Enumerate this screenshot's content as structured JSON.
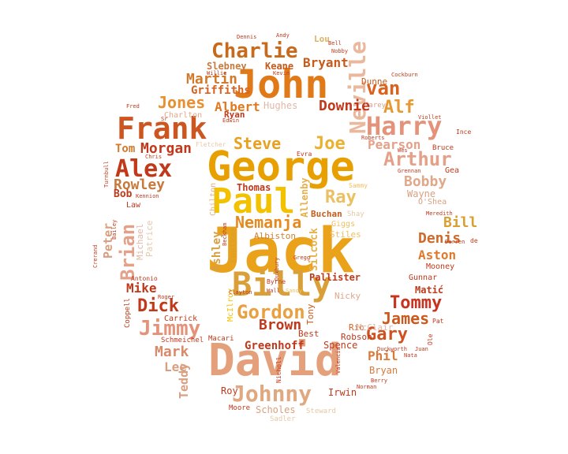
{
  "palette": {
    "dark_red": "#c0391b",
    "red": "#d64520",
    "burnt_orange": "#c85a1a",
    "orange": "#e08020",
    "amber": "#eaa21a",
    "gold": "#f2b600",
    "salmon": "#e4937a",
    "peach": "#e8a878",
    "tan": "#d8b488",
    "light_tan": "#e6c9a8",
    "crimson": "#c91e2a"
  },
  "words": [
    {
      "text": "Jack",
      "color": "#eaa21a"
    },
    {
      "text": "David",
      "color": "#e4a07a"
    },
    {
      "text": "George",
      "color": "#e8a000"
    },
    {
      "text": "John",
      "color": "#e07a18"
    },
    {
      "text": "Paul",
      "color": "#f2c200"
    },
    {
      "text": "Billy",
      "color": "#d9a03a"
    },
    {
      "text": "Frank",
      "color": "#cc5520"
    },
    {
      "text": "Harry",
      "color": "#e4937a"
    },
    {
      "text": "Charlie",
      "color": "#c86a1c"
    },
    {
      "text": "Alex",
      "color": "#c0391b"
    },
    {
      "text": "Neville",
      "color": "#eab89c"
    },
    {
      "text": "Johnny",
      "color": "#e0a880"
    },
    {
      "text": "Gordon",
      "color": "#e8a040"
    },
    {
      "text": "Jimmy",
      "color": "#e4937a"
    },
    {
      "text": "Brian",
      "color": "#e4a088"
    },
    {
      "text": "Arthur",
      "color": "#e4a088"
    },
    {
      "text": "Tommy",
      "color": "#c8321e"
    },
    {
      "text": "Martin",
      "color": "#d27a2a"
    },
    {
      "text": "Jones",
      "color": "#e89030"
    },
    {
      "text": "Steve",
      "color": "#e8a020"
    },
    {
      "text": "Nemanja",
      "color": "#e48a20"
    },
    {
      "text": "Ray",
      "color": "#eac060"
    },
    {
      "text": "Joe",
      "color": "#eab030"
    },
    {
      "text": "van",
      "color": "#d8621e"
    },
    {
      "text": "Alf",
      "color": "#e89830"
    },
    {
      "text": "Gary",
      "color": "#d05020"
    },
    {
      "text": "James",
      "color": "#cc5a1e"
    },
    {
      "text": "Dick",
      "color": "#c0391b"
    },
    {
      "text": "Mark",
      "color": "#d88a6a"
    },
    {
      "text": "Brown",
      "color": "#c0391b"
    },
    {
      "text": "Bobby",
      "color": "#e0a888"
    },
    {
      "text": "Denis",
      "color": "#d06a2a"
    },
    {
      "text": "Aston",
      "color": "#e07a2a"
    },
    {
      "text": "Bill",
      "color": "#d8a030"
    },
    {
      "text": "Rowley",
      "color": "#c67a3e"
    },
    {
      "text": "Morgan",
      "color": "#c0391b"
    },
    {
      "text": "Tom",
      "color": "#d27a2a"
    },
    {
      "text": "Pearson",
      "color": "#e4a088"
    },
    {
      "text": "Downie",
      "color": "#c0391b"
    },
    {
      "text": "Albert",
      "color": "#e07a20"
    },
    {
      "text": "Bryant",
      "color": "#c85a1a"
    },
    {
      "text": "Griffiths",
      "color": "#d8621e"
    },
    {
      "text": "Greenhoff",
      "color": "#c0391b"
    },
    {
      "text": "Mike",
      "color": "#c0391b"
    },
    {
      "text": "Lee",
      "color": "#d8a080"
    },
    {
      "text": "Phil",
      "color": "#d87a3a"
    },
    {
      "text": "Peter",
      "color": "#d8a080"
    },
    {
      "text": "Teddy",
      "color": "#d8a080"
    },
    {
      "text": "Thomas",
      "color": "#c0391b"
    },
    {
      "text": "Ashley",
      "color": "#d8a040"
    },
    {
      "text": "Silcock",
      "color": "#e6b04a"
    },
    {
      "text": "Allenby",
      "color": "#e6b04a"
    },
    {
      "text": "Keane",
      "color": "#c85a1a"
    },
    {
      "text": "Slebney",
      "color": "#c67a3e"
    },
    {
      "text": "Lou",
      "color": "#e0b060"
    },
    {
      "text": "Dunne",
      "color": "#c85a1a"
    },
    {
      "text": "Bob",
      "color": "#c0391b"
    },
    {
      "text": "Ryan",
      "color": "#c0391b"
    },
    {
      "text": "Charlton",
      "color": "#e4a888"
    },
    {
      "text": "Hughes",
      "color": "#e0b8a8"
    },
    {
      "text": "Carey",
      "color": "#d8a090"
    },
    {
      "text": "Law",
      "color": "#c0391b"
    },
    {
      "text": "Michael",
      "color": "#e0b8a8"
    },
    {
      "text": "Patrice",
      "color": "#e6c9a8"
    },
    {
      "text": "Chilton",
      "color": "#e4b080"
    },
    {
      "text": "Foulkes",
      "color": "#d8a030"
    },
    {
      "text": "Albiston",
      "color": "#d08030"
    },
    {
      "text": "Buchan",
      "color": "#c85a1a"
    },
    {
      "text": "Stiles",
      "color": "#f0c060"
    },
    {
      "text": "Giggs",
      "color": "#f0c060"
    },
    {
      "text": "Shay",
      "color": "#e6c9a8"
    },
    {
      "text": "Pallister",
      "color": "#c0391b"
    },
    {
      "text": "Nicky",
      "color": "#e0a888"
    },
    {
      "text": "Tony",
      "color": "#c85a1a"
    },
    {
      "text": "Best",
      "color": "#c0391b"
    },
    {
      "text": "Rio",
      "color": "#d8621e"
    },
    {
      "text": "McClair",
      "color": "#e0b8a8"
    },
    {
      "text": "Spence",
      "color": "#c0391b"
    },
    {
      "text": "Robson",
      "color": "#c0391b"
    },
    {
      "text": "Roy",
      "color": "#c0391b"
    },
    {
      "text": "Irwin",
      "color": "#c0391b"
    },
    {
      "text": "Scholes",
      "color": "#d8a080"
    },
    {
      "text": "Steward",
      "color": "#e6c9a8"
    },
    {
      "text": "Bryan",
      "color": "#d87a3a"
    },
    {
      "text": "Moore",
      "color": "#c0391b"
    },
    {
      "text": "Sadler",
      "color": "#e6c9a8"
    },
    {
      "text": "Matić",
      "color": "#c0391b"
    },
    {
      "text": "Gunnar",
      "color": "#c0391b"
    },
    {
      "text": "Mooney",
      "color": "#c0391b"
    },
    {
      "text": "Wayne",
      "color": "#d8a080"
    },
    {
      "text": "O'Shea",
      "color": "#d8a080"
    },
    {
      "text": "Carrick",
      "color": "#c0391b"
    },
    {
      "text": "Schmeichel",
      "color": "#c0391b"
    },
    {
      "text": "Macari",
      "color": "#c0391b"
    },
    {
      "text": "Coppell",
      "color": "#c0391b"
    },
    {
      "text": "Antonio",
      "color": "#c0391b"
    },
    {
      "text": "Roger",
      "color": "#c0391b"
    },
    {
      "text": "Edwin",
      "color": "#c0391b"
    },
    {
      "text": "Fred",
      "color": "#c0391b"
    },
    {
      "text": "Turnbull",
      "color": "#c0391b"
    },
    {
      "text": "Bruce",
      "color": "#c0391b"
    },
    {
      "text": "Gea",
      "color": "#c0391b"
    },
    {
      "text": "Sammy",
      "color": "#f0c060"
    },
    {
      "text": "Byrne",
      "color": "#c0391b"
    },
    {
      "text": "Sandy",
      "color": "#f0c060"
    },
    {
      "text": "Beckham",
      "color": "#c0391b"
    },
    {
      "text": "Duxbury",
      "color": "#c0391b"
    },
    {
      "text": "Gregg",
      "color": "#c0391b"
    },
    {
      "text": "McIlroy",
      "color": "#f2c200"
    },
    {
      "text": "Nicholl",
      "color": "#c0391b"
    },
    {
      "text": "Evra",
      "color": "#c0391b"
    },
    {
      "text": "Roberts",
      "color": "#c0391b"
    },
    {
      "text": "Valencia",
      "color": "#c0391b"
    },
    {
      "text": "Darren",
      "color": "#c0391b"
    },
    {
      "text": "Pat",
      "color": "#c0391b"
    },
    {
      "text": "Ole",
      "color": "#c0391b"
    },
    {
      "text": "Nata",
      "color": "#c0391b"
    },
    {
      "text": "Juan",
      "color": "#c0391b"
    },
    {
      "text": "Berry",
      "color": "#c0391b"
    },
    {
      "text": "Norman",
      "color": "#c0391b"
    },
    {
      "text": "Meredith",
      "color": "#c0391b"
    },
    {
      "text": "Viollet",
      "color": "#c0391b"
    },
    {
      "text": "Dennis",
      "color": "#c0391b"
    },
    {
      "text": "Andy",
      "color": "#c0391b"
    },
    {
      "text": "Nobby",
      "color": "#c0391b"
    },
    {
      "text": "Kevin",
      "color": "#c0391b"
    },
    {
      "text": "Willie",
      "color": "#c0391b"
    },
    {
      "text": "Duckworth",
      "color": "#c0391b"
    },
    {
      "text": "Cockburn",
      "color": "#c0391b"
    },
    {
      "text": "Crerand",
      "color": "#c0391b"
    },
    {
      "text": "Bailey",
      "color": "#c0391b"
    },
    {
      "text": "Clayton",
      "color": "#c0391b"
    },
    {
      "text": "Wall",
      "color": "#c0391b"
    },
    {
      "text": "Kennion",
      "color": "#c0391b"
    },
    {
      "text": "Grennan",
      "color": "#c0391b"
    },
    {
      "text": "Wes",
      "color": "#c0391b"
    },
    {
      "text": "Ince",
      "color": "#c0391b"
    },
    {
      "text": "Bell",
      "color": "#c0391b"
    },
    {
      "text": "de",
      "color": "#c0391b"
    },
    {
      "text": "Fletcher",
      "color": "#c0391b"
    },
    {
      "text": "Chris",
      "color": "#c0391b"
    },
    {
      "text": "Sr",
      "color": "#c0391b"
    }
  ]
}
